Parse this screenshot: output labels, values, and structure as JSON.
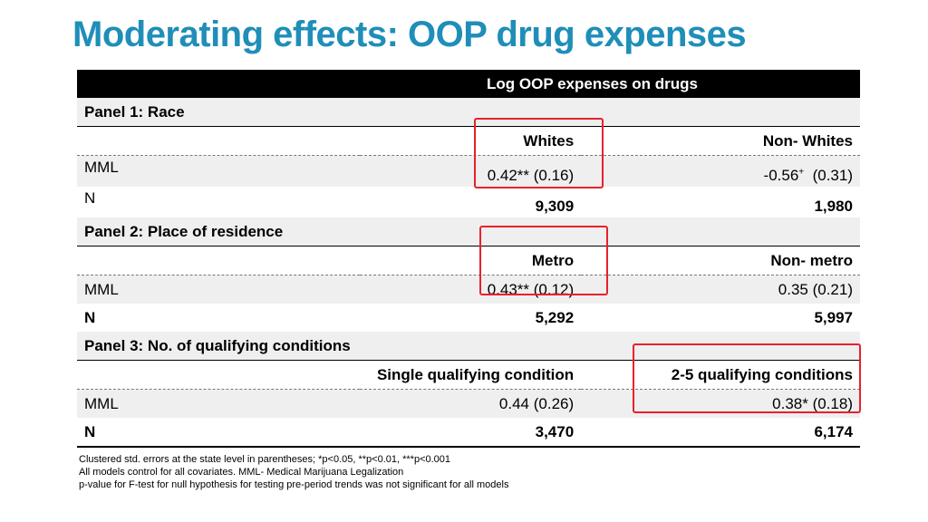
{
  "title": "Moderating effects: OOP drug expenses",
  "table": {
    "header": "Log OOP expenses on drugs",
    "panels": [
      {
        "label": "Panel 1: Race",
        "col1": "Whites",
        "col2": "Non- Whites",
        "mml_label": "MML",
        "mml_col1": "0.42**  (0.16)",
        "mml_col2_coef": "-0.56",
        "mml_col2_sup": "+",
        "mml_col2_se": "(0.31)",
        "n_label": "N",
        "n_col1": "9,309",
        "n_col2": "1,980"
      },
      {
        "label": "Panel 2: Place of residence",
        "col1": "Metro",
        "col2": "Non- metro",
        "mml_label": "MML",
        "mml_col1": "0.43** (0.12)",
        "mml_col2": "0.35  (0.21)",
        "n_label": "N",
        "n_col1": "5,292",
        "n_col2": "5,997"
      },
      {
        "label": "Panel 3: No. of qualifying conditions",
        "col1": "Single qualifying condition",
        "col2": "2-5 qualifying conditions",
        "mml_label": "MML",
        "mml_col1": "0.44 (0.26)",
        "mml_col2": "0.38* (0.18)",
        "n_label": "N",
        "n_col1": "3,470",
        "n_col2": "6,174"
      }
    ]
  },
  "notes": [
    "Clustered std. errors at the state level in parentheses;  *p<0.05, **p<0.01, ***p<0.001",
    "All models control for all covariates.  MML- Medical Marijuana Legalization",
    "p-value for F-test for null hypothesis for testing pre-period trends was not significant for all models"
  ],
  "colors": {
    "title": "#1f8eb8",
    "highlight": "#e8212b",
    "shade": "#efefef"
  }
}
